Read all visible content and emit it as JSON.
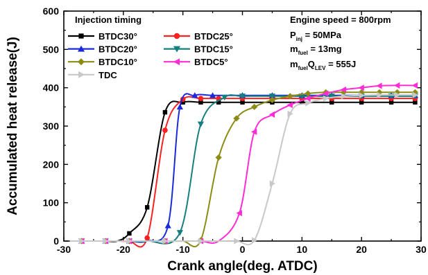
{
  "chart_data": {
    "type": "line",
    "xlabel": "Crank angle(deg. ATDC)",
    "ylabel": "Accumulated heat release(J)",
    "xlim": [
      -30,
      30
    ],
    "ylim": [
      0,
      600
    ],
    "xticks": [
      -30,
      -20,
      -10,
      0,
      10,
      20,
      30
    ],
    "yticks": [
      0,
      100,
      200,
      300,
      400,
      500,
      600
    ],
    "grid": false,
    "legend_title": "Injection timing",
    "legend_position": "top-left",
    "annotations": [
      {
        "main": "Engine speed = 800rpm"
      },
      {
        "main": "P",
        "sub": "inj",
        "rest": " = 50MPa"
      },
      {
        "main": "m",
        "sub": "fuel",
        "rest": " = 13mg"
      },
      {
        "main": "m",
        "sub": "fuel",
        "main2": "Q",
        "sub2": "LEV",
        "rest": " = 555J"
      }
    ],
    "series": [
      {
        "name": "BTDC30°",
        "color": "#000000",
        "marker": "square",
        "x": [
          -29,
          -27,
          -25,
          -23,
          -21,
          -19,
          -16,
          -13,
          -10,
          -7,
          -4,
          0,
          5,
          10,
          15,
          20,
          25,
          29
        ],
        "y": [
          0,
          0,
          0,
          0,
          0,
          20,
          88,
          336,
          362,
          362,
          362,
          362,
          362,
          362,
          362,
          362,
          362,
          362
        ]
      },
      {
        "name": "BTDC25°",
        "color": "#ff2020",
        "marker": "circle",
        "x": [
          -29,
          -27,
          -25,
          -23,
          -21,
          -19,
          -16,
          -13,
          -10,
          -7,
          -4,
          0,
          5,
          10,
          15,
          20,
          25,
          29
        ],
        "y": [
          0,
          0,
          0,
          0,
          0,
          0,
          8,
          289,
          370,
          372,
          372,
          372,
          372,
          372,
          372,
          372,
          372,
          372
        ]
      },
      {
        "name": "BTDC20°",
        "color": "#1a2adb",
        "marker": "triangle-up",
        "x": [
          -29,
          -27,
          -25,
          -23,
          -21,
          -19,
          -16,
          -12.5,
          -10.5,
          -8,
          -5,
          0,
          5,
          10,
          15,
          20,
          25,
          29
        ],
        "y": [
          0,
          0,
          0,
          0,
          0,
          0,
          0,
          40,
          350,
          380,
          380,
          380,
          380,
          380,
          380,
          380,
          380,
          380
        ]
      },
      {
        "name": "BTDC15°",
        "color": "#157f7f",
        "marker": "triangle-down",
        "x": [
          -29,
          -27,
          -25,
          -23,
          -21,
          -19,
          -16,
          -10.5,
          -7,
          -3,
          0,
          5,
          10,
          15,
          20,
          25,
          29
        ],
        "y": [
          0,
          0,
          0,
          0,
          0,
          0,
          0,
          22,
          305,
          375,
          378,
          378,
          378,
          378,
          378,
          378,
          378
        ]
      },
      {
        "name": "BTDC10°",
        "color": "#8c8c14",
        "marker": "diamond",
        "x": [
          -29,
          -27,
          -25,
          -23,
          -21,
          -19,
          -16,
          -13,
          -10,
          -7,
          -4,
          -1,
          2,
          5,
          8,
          11,
          14,
          17,
          20,
          23,
          26,
          29
        ],
        "y": [
          0,
          0,
          0,
          0,
          0,
          0,
          0,
          0,
          0,
          2,
          218,
          320,
          350,
          368,
          378,
          385,
          388,
          388,
          388,
          388,
          388,
          388
        ]
      },
      {
        "name": "BTDC5°",
        "color": "#ff2cd6",
        "marker": "triangle-left",
        "x": [
          -29,
          -27,
          -25,
          -23,
          -21,
          -19,
          -16,
          -13,
          -10,
          -7,
          -4,
          -0.5,
          2,
          5,
          8,
          11,
          14,
          17,
          20,
          23,
          26,
          29
        ],
        "y": [
          0,
          0,
          0,
          0,
          0,
          0,
          0,
          0,
          0,
          0,
          0,
          73,
          285,
          330,
          355,
          372,
          385,
          395,
          400,
          405,
          406,
          406
        ]
      },
      {
        "name": "TDC",
        "color": "#c8c8c8",
        "marker": "triangle-right",
        "x": [
          -29,
          -27,
          -25,
          -23,
          -21,
          -19,
          -16,
          -13,
          -10,
          -7,
          -4,
          -1,
          2,
          5,
          8,
          11,
          14,
          17,
          20,
          23,
          26,
          29
        ],
        "y": [
          0,
          0,
          0,
          0,
          0,
          0,
          0,
          0,
          0,
          0,
          0,
          0,
          2,
          150,
          332,
          360,
          372,
          378,
          380,
          381,
          381,
          381
        ]
      }
    ]
  }
}
